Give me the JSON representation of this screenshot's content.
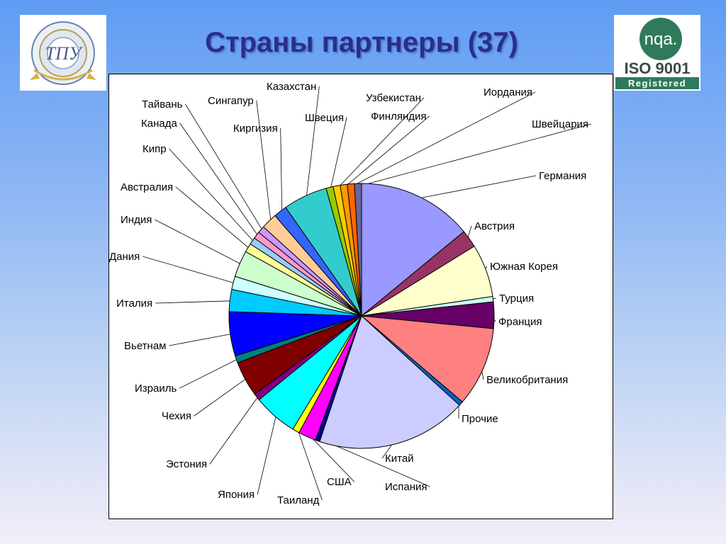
{
  "title": "Страны партнеры (37)",
  "logos": {
    "left": {
      "icon": "university-seal-icon",
      "text": "ТОМСКИЙ ПОЛИТЕХНИЧЕСКИЙ УНИВЕРСИТЕТ · TOMSK POLYTECHNIC UNIVERSITY"
    },
    "right": {
      "icon": "nqa-iso-logo-icon",
      "brand": "nqa.",
      "standard": "ISO 9001",
      "status": "Registered"
    }
  },
  "chart_data": {
    "type": "pie",
    "title": "Страны партнеры (37)",
    "series": [
      {
        "values": [
          13,
          2,
          6,
          0.6,
          3,
          9,
          0.5,
          17,
          0.5,
          2,
          0.8,
          5,
          0.8,
          4,
          0.8,
          5,
          2.5,
          1.5,
          3,
          1,
          0.8,
          0.8,
          0.8,
          1.8,
          1.5,
          5,
          0.8,
          0.8,
          0.8,
          0.8,
          0.8
        ],
        "colors": [
          "#9999ff",
          "#993366",
          "#ffffcc",
          "#ccffff",
          "#660066",
          "#ff8080",
          "#0066cc",
          "#ccccff",
          "#000080",
          "#ff00ff",
          "#ffff00",
          "#00ffff",
          "#800080",
          "#800000",
          "#008080",
          "#0000ff",
          "#00ccff",
          "#ccffff",
          "#ccffcc",
          "#ffff99",
          "#99ccff",
          "#ff99cc",
          "#cc99ff",
          "#ffcc99",
          "#3366ff",
          "#33cccc",
          "#99cc00",
          "#ffcc00",
          "#ff9900",
          "#ff6600",
          "#666699"
        ]
      }
    ],
    "categories": [
      "Германия",
      "Австрия",
      "Южная Корея",
      "Турция",
      "Франция",
      "Великобритания",
      "Прочие",
      "Китай",
      "Испания",
      "США",
      "Таиланд",
      "Япония",
      "Эстония",
      "Чехия",
      "Израиль",
      "Вьетнам",
      "Италия",
      "Дания",
      "Индия",
      "Австралия",
      "Кипр",
      "Канада",
      "Тайвань",
      "Сингапур",
      "Киргизия",
      "Казахстан",
      "Швеция",
      "Узбекистан",
      "Финляндия",
      "Иордания",
      "Швейцария"
    ],
    "grid": false,
    "legend": "none"
  }
}
